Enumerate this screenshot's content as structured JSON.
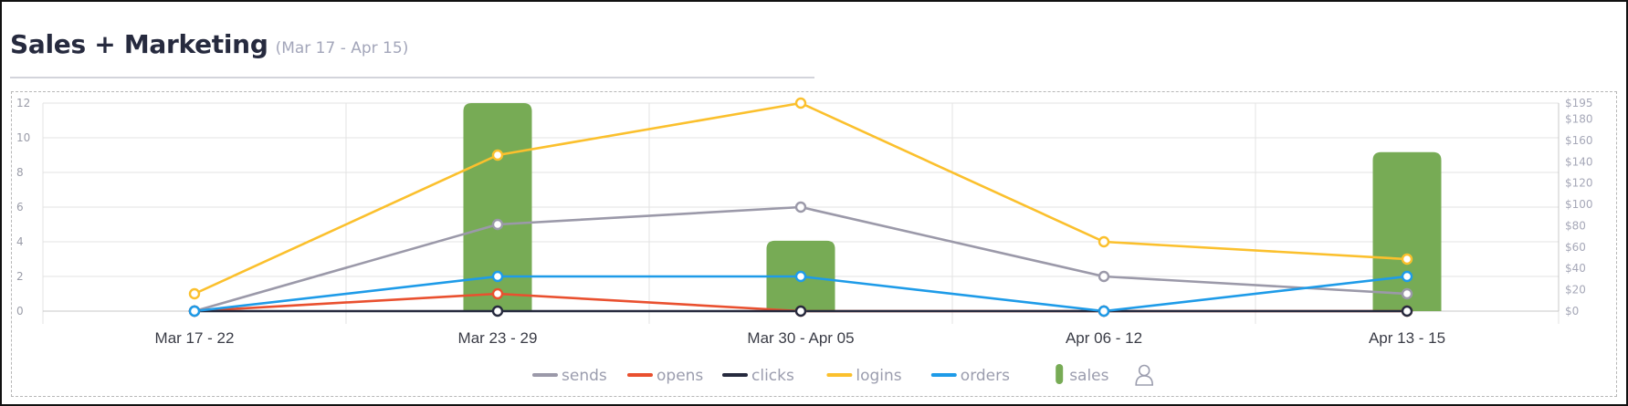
{
  "header": {
    "title": "Sales + Marketing",
    "subtitle": "(Mar 17 - Apr 15)"
  },
  "colors": {
    "sends": "#9b99a9",
    "opens": "#e9502f",
    "clicks": "#262a3e",
    "logins": "#fbc02d",
    "orders": "#1e9be8",
    "sales": "#77ab55",
    "grid": "#e3e3e3",
    "axis": "#c8c8c8"
  },
  "chart_data": {
    "type": "bar+line",
    "categories": [
      "Mar 17 - 22",
      "Mar 23 - 29",
      "Mar 30 - Apr 05",
      "Apr 06 - 12",
      "Apr 13 - 15"
    ],
    "y_left": {
      "ylim": [
        0,
        12
      ],
      "ticks": [
        "0",
        "2",
        "4",
        "6",
        "8",
        "10",
        "12"
      ]
    },
    "y_right": {
      "ylim": [
        0,
        195
      ],
      "ticks": [
        "$0",
        "$20",
        "$40",
        "$60",
        "$80",
        "$100",
        "$120",
        "$140",
        "$160",
        "$180",
        "$195"
      ]
    },
    "grid": true,
    "legend_position": "bottom",
    "series": [
      {
        "name": "sends",
        "type": "line",
        "axis": "left",
        "values": [
          0,
          5,
          6,
          2,
          1
        ]
      },
      {
        "name": "opens",
        "type": "line",
        "axis": "left",
        "values": [
          0,
          1,
          0,
          0,
          0
        ]
      },
      {
        "name": "clicks",
        "type": "line",
        "axis": "left",
        "values": [
          0,
          0,
          0,
          0,
          0
        ]
      },
      {
        "name": "logins",
        "type": "line",
        "axis": "left",
        "values": [
          1,
          9,
          12,
          4,
          3
        ]
      },
      {
        "name": "orders",
        "type": "line",
        "axis": "left",
        "values": [
          0,
          2,
          2,
          0,
          2
        ]
      },
      {
        "name": "sales",
        "type": "bar",
        "axis": "right",
        "values": [
          0,
          195,
          66,
          0,
          149
        ]
      }
    ],
    "legend": [
      "sends",
      "opens",
      "clicks",
      "logins",
      "orders",
      "sales"
    ],
    "legend_icon": "person-icon"
  }
}
